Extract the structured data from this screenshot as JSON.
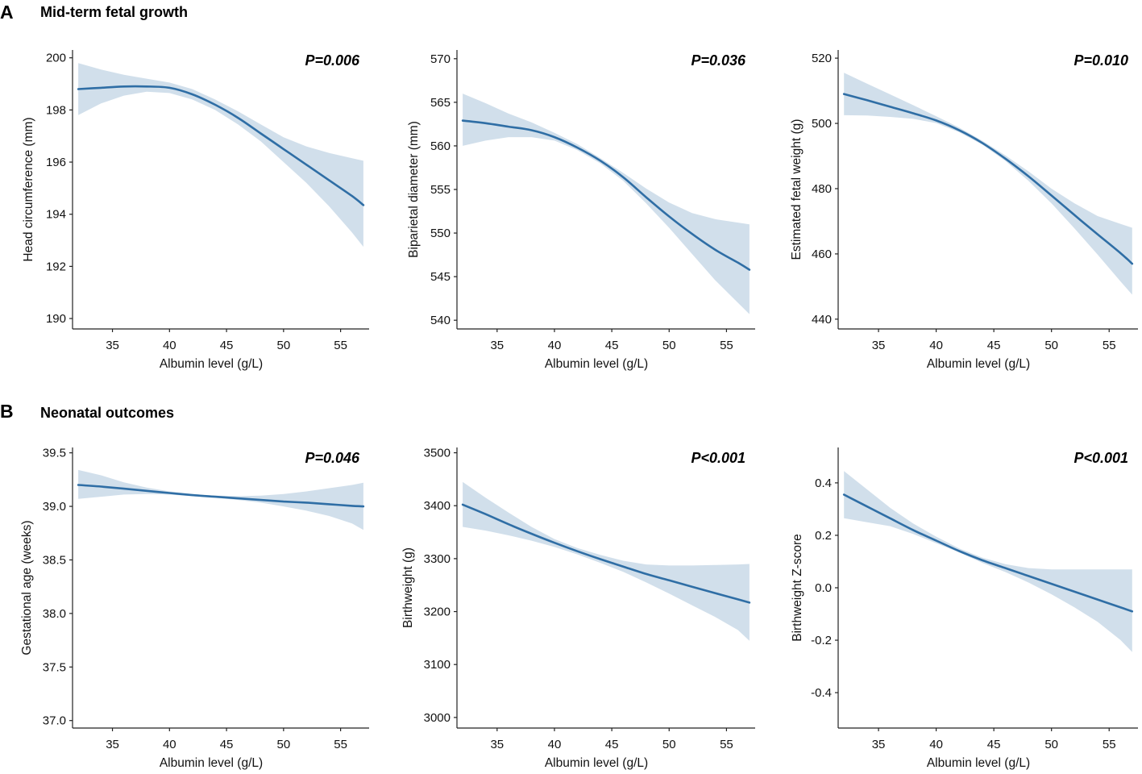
{
  "sections": [
    {
      "letter": "A",
      "title": "Mid-term fetal growth"
    },
    {
      "letter": "B",
      "title": "Neonatal outcomes"
    }
  ],
  "chart_data": [
    {
      "type": "line",
      "panel": "A1",
      "title": "",
      "xlabel": "Albumin level (g/L)",
      "ylabel": "Head circumference (mm)",
      "pvalue": "P=0.006",
      "xlim": [
        31.5,
        57.5
      ],
      "ylim": [
        189.6,
        200.3
      ],
      "xticks": [
        35,
        40,
        45,
        50,
        55
      ],
      "yticks": [
        190,
        192,
        194,
        196,
        198,
        200
      ],
      "yticklabels": [
        "190",
        "192",
        "194",
        "196",
        "198",
        "200"
      ],
      "series": [
        {
          "name": "fit",
          "x": [
            32,
            34,
            36,
            38,
            40,
            42,
            44,
            46,
            48,
            50,
            52,
            54,
            56,
            57
          ],
          "y": [
            198.8,
            198.85,
            198.9,
            198.9,
            198.85,
            198.6,
            198.2,
            197.7,
            197.1,
            196.5,
            195.9,
            195.3,
            194.7,
            194.35
          ],
          "lower": [
            197.8,
            198.25,
            198.55,
            198.7,
            198.65,
            198.4,
            198.0,
            197.45,
            196.8,
            196.0,
            195.2,
            194.3,
            193.3,
            192.75
          ],
          "upper": [
            199.8,
            199.55,
            199.35,
            199.2,
            199.05,
            198.8,
            198.4,
            197.95,
            197.45,
            196.95,
            196.6,
            196.35,
            196.15,
            196.05
          ]
        }
      ]
    },
    {
      "type": "line",
      "panel": "A2",
      "title": "",
      "xlabel": "Albumin level (g/L)",
      "ylabel": "Biparietal diameter (mm)",
      "pvalue": "P=0.036",
      "xlim": [
        31.5,
        57.5
      ],
      "ylim": [
        539.0,
        571.0
      ],
      "xticks": [
        35,
        40,
        45,
        50,
        55
      ],
      "yticks": [
        540,
        545,
        550,
        555,
        560,
        565,
        570
      ],
      "yticklabels": [
        "540",
        "545",
        "550",
        "555",
        "560",
        "565",
        "570"
      ],
      "series": [
        {
          "name": "fit",
          "x": [
            32,
            34,
            36,
            38,
            40,
            42,
            44,
            46,
            48,
            50,
            52,
            54,
            56,
            57
          ],
          "y": [
            562.9,
            562.6,
            562.2,
            561.8,
            561.0,
            559.8,
            558.3,
            556.4,
            554.1,
            551.9,
            549.9,
            548.1,
            546.6,
            545.8
          ],
          "lower": [
            560.0,
            560.6,
            561.0,
            561.0,
            560.6,
            559.5,
            558.0,
            556.0,
            553.4,
            550.6,
            547.6,
            544.6,
            542.0,
            540.7
          ],
          "upper": [
            566.0,
            564.9,
            563.7,
            562.7,
            561.5,
            560.2,
            558.6,
            556.9,
            555.1,
            553.5,
            552.3,
            551.6,
            551.2,
            551.0
          ]
        }
      ]
    },
    {
      "type": "line",
      "panel": "A3",
      "title": "",
      "xlabel": "Albumin level (g/L)",
      "ylabel": "Estimated fetal weight (g)",
      "pvalue": "P=0.010",
      "xlim": [
        31.5,
        57.5
      ],
      "ylim": [
        437.0,
        522.5
      ],
      "xticks": [
        35,
        40,
        45,
        50,
        55
      ],
      "yticks": [
        440,
        460,
        480,
        500,
        520
      ],
      "yticklabels": [
        "440",
        "460",
        "480",
        "500",
        "520"
      ],
      "series": [
        {
          "name": "fit",
          "x": [
            32,
            34,
            36,
            38,
            40,
            42,
            44,
            46,
            48,
            50,
            52,
            54,
            56,
            57
          ],
          "y": [
            509.0,
            507.1,
            505.1,
            503.1,
            500.9,
            497.9,
            494.0,
            489.2,
            483.8,
            477.9,
            471.9,
            466.0,
            460.2,
            457.0
          ],
          "lower": [
            502.5,
            502.4,
            502.0,
            501.4,
            500.1,
            497.3,
            493.5,
            488.5,
            482.4,
            475.5,
            467.8,
            459.8,
            451.5,
            447.5
          ],
          "upper": [
            515.5,
            512.2,
            508.9,
            505.6,
            502.2,
            498.7,
            494.7,
            490.2,
            485.3,
            480.0,
            475.5,
            471.6,
            469.2,
            468.0
          ]
        }
      ]
    },
    {
      "type": "line",
      "panel": "B1",
      "title": "",
      "xlabel": "Albumin level (g/L)",
      "ylabel": "Gestational age (weeks)",
      "pvalue": "P=0.046",
      "xlim": [
        31.5,
        57.5
      ],
      "ylim": [
        36.93,
        39.55
      ],
      "xticks": [
        35,
        40,
        45,
        50,
        55
      ],
      "yticks": [
        37.0,
        37.5,
        38.0,
        38.5,
        39.0,
        39.5
      ],
      "yticklabels": [
        "37.0",
        "37.5",
        "38.0",
        "38.5",
        "39.0",
        "39.5"
      ],
      "series": [
        {
          "name": "fit",
          "x": [
            32,
            34,
            36,
            38,
            40,
            42,
            44,
            46,
            48,
            50,
            52,
            54,
            56,
            57
          ],
          "y": [
            39.2,
            39.185,
            39.165,
            39.145,
            39.125,
            39.105,
            39.09,
            39.075,
            39.06,
            39.045,
            39.035,
            39.02,
            39.005,
            39.0
          ],
          "lower": [
            39.07,
            39.09,
            39.11,
            39.115,
            39.11,
            39.095,
            39.08,
            39.06,
            39.035,
            39.0,
            38.96,
            38.91,
            38.84,
            38.78
          ],
          "upper": [
            39.34,
            39.29,
            39.225,
            39.175,
            39.14,
            39.115,
            39.1,
            39.095,
            39.1,
            39.115,
            39.14,
            39.17,
            39.2,
            39.22
          ]
        }
      ]
    },
    {
      "type": "line",
      "panel": "B2",
      "title": "",
      "xlabel": "Albumin level (g/L)",
      "ylabel": "Birthweight (g)",
      "pvalue": "P<0.001",
      "xlim": [
        31.5,
        57.5
      ],
      "ylim": [
        2980,
        3510
      ],
      "xticks": [
        35,
        40,
        45,
        50,
        55
      ],
      "yticks": [
        3000,
        3100,
        3200,
        3300,
        3400,
        3500
      ],
      "yticklabels": [
        "3000",
        "3100",
        "3200",
        "3300",
        "3400",
        "3500"
      ],
      "series": [
        {
          "name": "fit",
          "x": [
            32,
            34,
            36,
            38,
            40,
            42,
            44,
            46,
            48,
            50,
            52,
            54,
            56,
            57
          ],
          "y": [
            3402,
            3384,
            3365,
            3347,
            3330,
            3314,
            3299,
            3285,
            3271,
            3259,
            3247,
            3235,
            3223,
            3217
          ],
          "lower": [
            3360,
            3353,
            3344,
            3334,
            3322,
            3308,
            3292,
            3275,
            3255,
            3234,
            3212,
            3190,
            3165,
            3145
          ],
          "upper": [
            3445,
            3415,
            3387,
            3360,
            3337,
            3320,
            3307,
            3296,
            3289,
            3287,
            3287,
            3288,
            3289,
            3290
          ]
        }
      ]
    },
    {
      "type": "line",
      "panel": "B3",
      "title": "",
      "xlabel": "Albumin level (g/L)",
      "ylabel": "Birthweight  Z-score",
      "pvalue": "P<0.001",
      "xlim": [
        31.5,
        57.5
      ],
      "ylim": [
        -0.535,
        0.535
      ],
      "xticks": [
        35,
        40,
        45,
        50,
        55
      ],
      "yticks": [
        -0.4,
        -0.2,
        0.0,
        0.2,
        0.4
      ],
      "yticklabels": [
        "-0.4",
        "-0.2",
        "0.0",
        "0.2",
        "0.4"
      ],
      "series": [
        {
          "name": "fit",
          "x": [
            32,
            34,
            36,
            38,
            40,
            42,
            44,
            46,
            48,
            50,
            52,
            54,
            56,
            57
          ],
          "y": [
            0.355,
            0.31,
            0.265,
            0.22,
            0.18,
            0.14,
            0.105,
            0.075,
            0.045,
            0.015,
            -0.015,
            -0.045,
            -0.075,
            -0.09
          ],
          "lower": [
            0.265,
            0.25,
            0.235,
            0.205,
            0.17,
            0.135,
            0.095,
            0.06,
            0.02,
            -0.025,
            -0.075,
            -0.13,
            -0.2,
            -0.245
          ],
          "upper": [
            0.445,
            0.375,
            0.305,
            0.245,
            0.195,
            0.15,
            0.115,
            0.09,
            0.075,
            0.07,
            0.07,
            0.07,
            0.07,
            0.07
          ]
        }
      ]
    }
  ]
}
